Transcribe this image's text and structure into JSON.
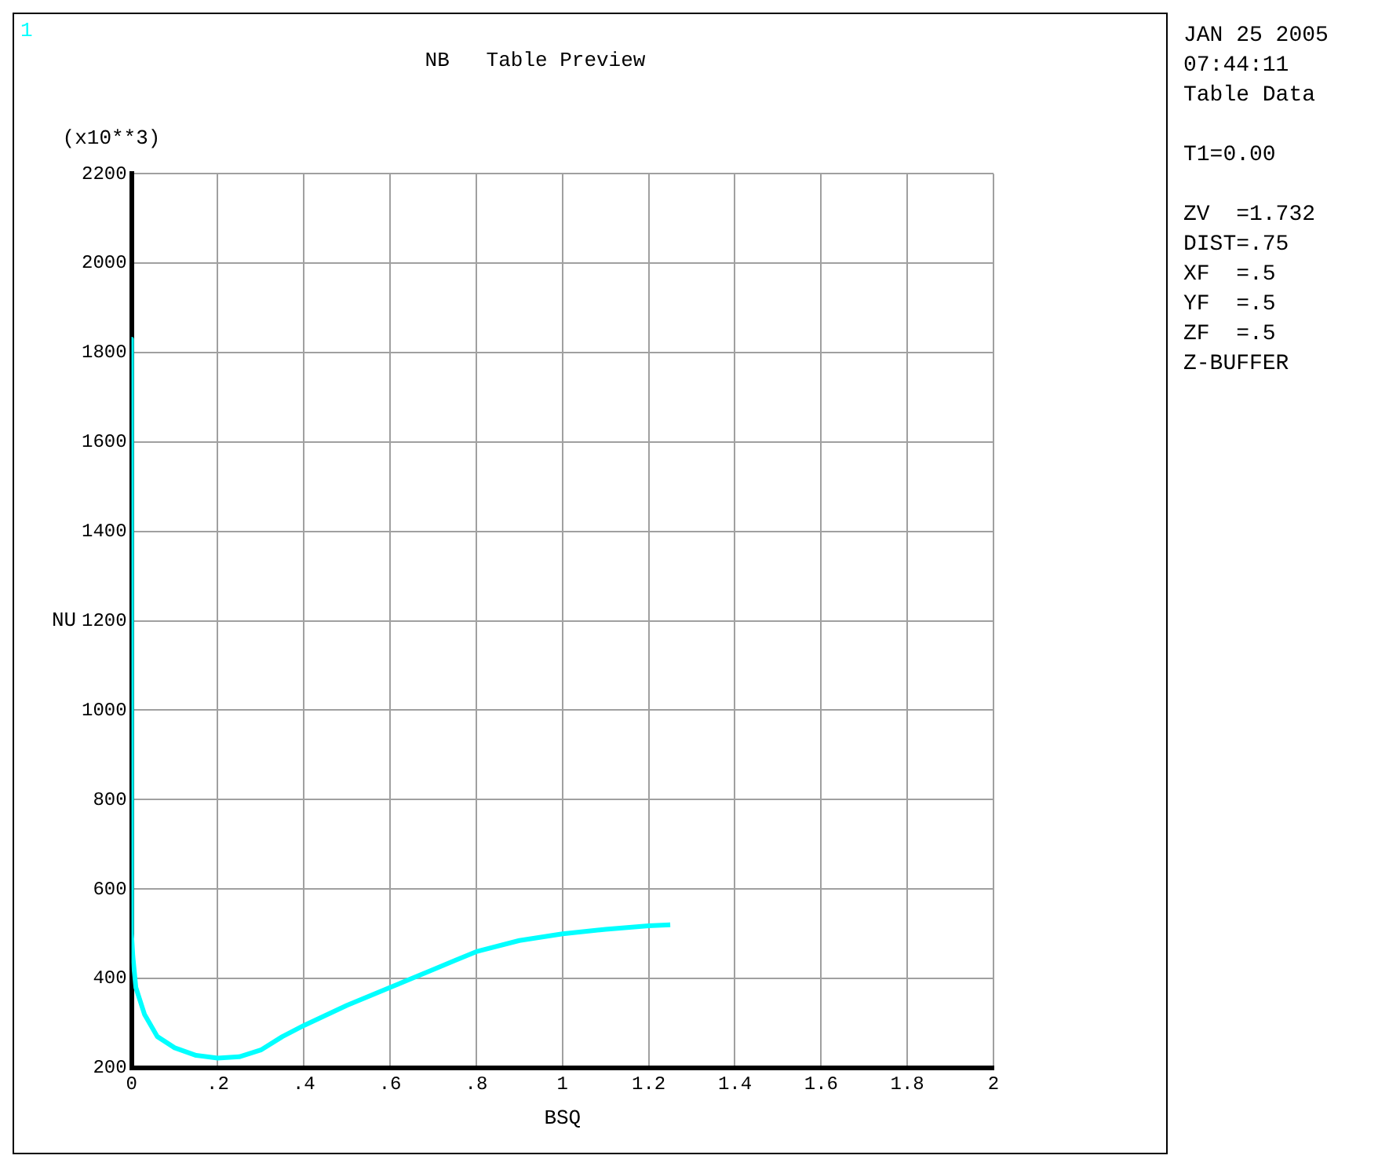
{
  "chart_data": {
    "type": "line",
    "title": "NB   Table Preview",
    "xlabel": "BSQ",
    "ylabel": "NU",
    "annotations": [
      "1",
      "(x10**3)",
      "JAN 25 2005",
      "07:44:11",
      "Table Data",
      "T1=0.00",
      "ZV  =1.732",
      "DIST=.75",
      "XF  =.5",
      "YF  =.5",
      "ZF  =.5",
      "Z-BUFFER"
    ],
    "x": [
      0,
      0,
      0.003,
      0.01,
      0.03,
      0.06,
      0.1,
      0.15,
      0.2,
      0.25,
      0.3,
      0.35,
      0.4,
      0.5,
      0.6,
      0.7,
      0.75,
      0.8,
      0.9,
      1.0,
      1.1,
      1.2,
      1.25
    ],
    "series": [
      {
        "color": "#00ffff",
        "values": [
          1830,
          500,
          450,
          380,
          320,
          270,
          245,
          228,
          222,
          225,
          240,
          270,
          295,
          340,
          380,
          420,
          440,
          460,
          485,
          500,
          510,
          518,
          520
        ]
      }
    ],
    "xlim": [
      0,
      2
    ],
    "xticks": [
      0,
      {
        "value": 0.2,
        "label": ".2"
      },
      {
        "value": 0.4,
        "label": ".4"
      },
      {
        "value": 0.6,
        "label": ".6"
      },
      {
        "value": 0.8,
        "label": ".8"
      },
      1,
      1.2,
      1.4,
      1.6,
      1.8,
      2
    ],
    "ylim": [
      200,
      2200
    ],
    "yticks": [
      200,
      400,
      600,
      800,
      1000,
      1200,
      1400,
      1600,
      1800,
      2000,
      2200
    ],
    "grid": true,
    "legend": false,
    "marker": "none",
    "line_style": "solid"
  }
}
